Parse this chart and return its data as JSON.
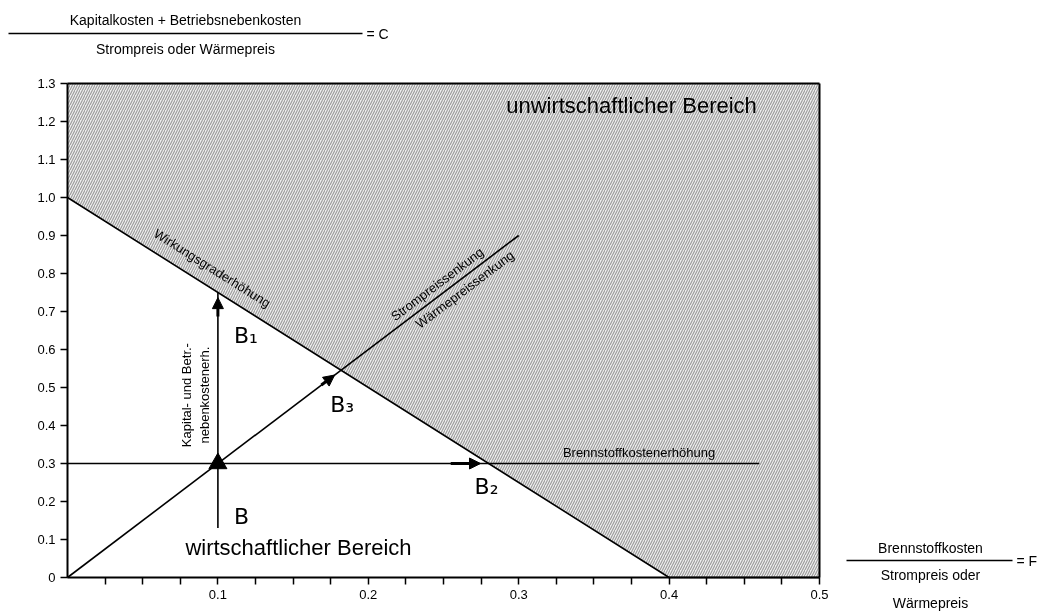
{
  "chart_data": {
    "type": "line",
    "xlabel": "Brennstoffkosten\nStrompreis oder\nWärmepreis = F",
    "ylabel": "Kapitalkosten + Betriebsnebenkosten\nStrompreis oder Wärmepreis = C",
    "xlim": [
      0,
      0.5
    ],
    "ylim": [
      0,
      1.3
    ],
    "xticks": [
      {
        "value": 0.025,
        "label": null
      },
      {
        "value": 0.05,
        "label": null
      },
      {
        "value": 0.075,
        "label": null
      },
      0.1,
      {
        "value": 0.125,
        "label": null
      },
      {
        "value": 0.15,
        "label": null
      },
      {
        "value": 0.175,
        "label": null
      },
      0.2,
      {
        "value": 0.225,
        "label": null
      },
      {
        "value": 0.25,
        "label": null
      },
      {
        "value": 0.275,
        "label": null
      },
      0.3,
      {
        "value": 0.325,
        "label": null
      },
      {
        "value": 0.35,
        "label": null
      },
      {
        "value": 0.375,
        "label": null
      },
      0.4,
      {
        "value": 0.425,
        "label": null
      },
      {
        "value": 0.45,
        "label": null
      },
      {
        "value": 0.475,
        "label": null
      },
      0.5
    ],
    "yticks": [
      0,
      0.1,
      0.2,
      0.3,
      0.4,
      0.5,
      0.6,
      0.7,
      0.8,
      0.9,
      {
        "value": 1,
        "label": "1.0"
      },
      1.1,
      1.2,
      1.3
    ],
    "grid": false,
    "series": [
      {
        "x": [
          0,
          0.4,
          0.5
        ],
        "values": [
          1,
          0,
          0
        ],
        "lower": [
          1,
          0,
          0
        ],
        "upper": [
          1.3,
          1.3,
          1.3
        ],
        "color": "#000000"
      },
      {
        "x": [
          0.1,
          0.1
        ],
        "values": [
          0.13,
          0.75
        ],
        "color": "#000000"
      },
      {
        "x": [
          0,
          0.46
        ],
        "values": [
          0.3,
          0.3
        ],
        "color": "#000000"
      },
      {
        "x": [
          0,
          0.3
        ],
        "values": [
          0,
          0.9
        ],
        "color": "#000000"
      },
      {
        "type": "scatter",
        "x": [
          0.1
        ],
        "values": [
          0.3
        ],
        "marker": "triangle",
        "color": "#000000"
      }
    ],
    "annotations": [
      "unwirtschaftlicher Bereich",
      "wirtschaftlicher Bereich",
      {
        "text": "Wirkungsgraderhöhung",
        "x": 0.09,
        "y": 0.775
      },
      {
        "text": "Kapital- und Betr.-\nnebenkostenerh.",
        "x": 0.1,
        "y": 0.48
      },
      {
        "text": "Brennstoffkostenerhöhung",
        "x": 0.38,
        "y": 0.3
      },
      {
        "text": "Strompreissenkung",
        "x": 0.25,
        "y": 0.75
      },
      {
        "text": "Wärmepreissenkung",
        "x": 0.26,
        "y": 0.78
      },
      {
        "text": "B",
        "x": 0.1,
        "y": 0.3
      },
      {
        "text": "B₁",
        "x": 0.1,
        "y": 0.75
      },
      {
        "text": "B₂",
        "x": 0.28,
        "y": 0.3
      },
      {
        "text": "B₃",
        "x": 0.18,
        "y": 0.54
      }
    ]
  }
}
